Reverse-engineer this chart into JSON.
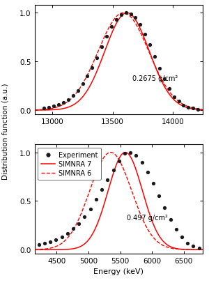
{
  "top_panel": {
    "annotation": "0.2675 g/cm²",
    "xlim": [
      12850,
      14250
    ],
    "xticks": [
      13000,
      13500,
      14000
    ],
    "ylim": [
      -0.04,
      1.08
    ],
    "yticks": [
      0.0,
      0.5,
      1.0
    ],
    "simnra7_mu": 13620,
    "simnra7_sigma": 185,
    "simnra6_mu": 13590,
    "simnra6_sigma": 210,
    "exp_points_x": [
      12930,
      12970,
      13010,
      13050,
      13090,
      13130,
      13170,
      13210,
      13250,
      13290,
      13330,
      13370,
      13410,
      13450,
      13490,
      13530,
      13570,
      13610,
      13650,
      13690,
      13730,
      13770,
      13810,
      13850,
      13890,
      13930,
      13970,
      14010,
      14050,
      14090,
      14130,
      14170,
      14210
    ],
    "exp_points_y": [
      0.02,
      0.03,
      0.04,
      0.06,
      0.08,
      0.11,
      0.15,
      0.2,
      0.27,
      0.35,
      0.44,
      0.54,
      0.65,
      0.76,
      0.86,
      0.93,
      0.98,
      1.0,
      0.99,
      0.95,
      0.88,
      0.78,
      0.67,
      0.55,
      0.43,
      0.32,
      0.22,
      0.14,
      0.09,
      0.05,
      0.03,
      0.02,
      0.01
    ]
  },
  "bottom_panel": {
    "annotation": "0.497 g/cm²",
    "xlim": [
      4150,
      6800
    ],
    "xticks": [
      4500,
      5000,
      5500,
      6000,
      6500
    ],
    "ylim": [
      -0.04,
      1.08
    ],
    "yticks": [
      0.0,
      0.5,
      1.0
    ],
    "simnra7_mu": 5580,
    "simnra7_sigma": 270,
    "simnra6_mu": 5350,
    "simnra6_sigma": 330,
    "exp_points_x": [
      4220,
      4310,
      4400,
      4490,
      4580,
      4670,
      4760,
      4850,
      4940,
      5030,
      5120,
      5210,
      5300,
      5390,
      5480,
      5570,
      5660,
      5750,
      5840,
      5930,
      6020,
      6110,
      6200,
      6290,
      6380,
      6470,
      6560,
      6650,
      6740
    ],
    "exp_points_y": [
      0.05,
      0.07,
      0.08,
      0.1,
      0.13,
      0.17,
      0.22,
      0.27,
      0.34,
      0.42,
      0.52,
      0.62,
      0.72,
      0.82,
      0.91,
      0.99,
      1.0,
      0.97,
      0.9,
      0.8,
      0.68,
      0.55,
      0.43,
      0.31,
      0.21,
      0.13,
      0.07,
      0.04,
      0.02
    ]
  },
  "ylabel": "Distribution function (a.u.)",
  "xlabel": "Energy (keV)",
  "line_color": "#ff0000",
  "dot_color": "#1a1a1a",
  "bg_color": "#ffffff",
  "legend_labels": [
    "Experiment",
    "SIMNRA 7",
    "SIMNRA 6"
  ]
}
